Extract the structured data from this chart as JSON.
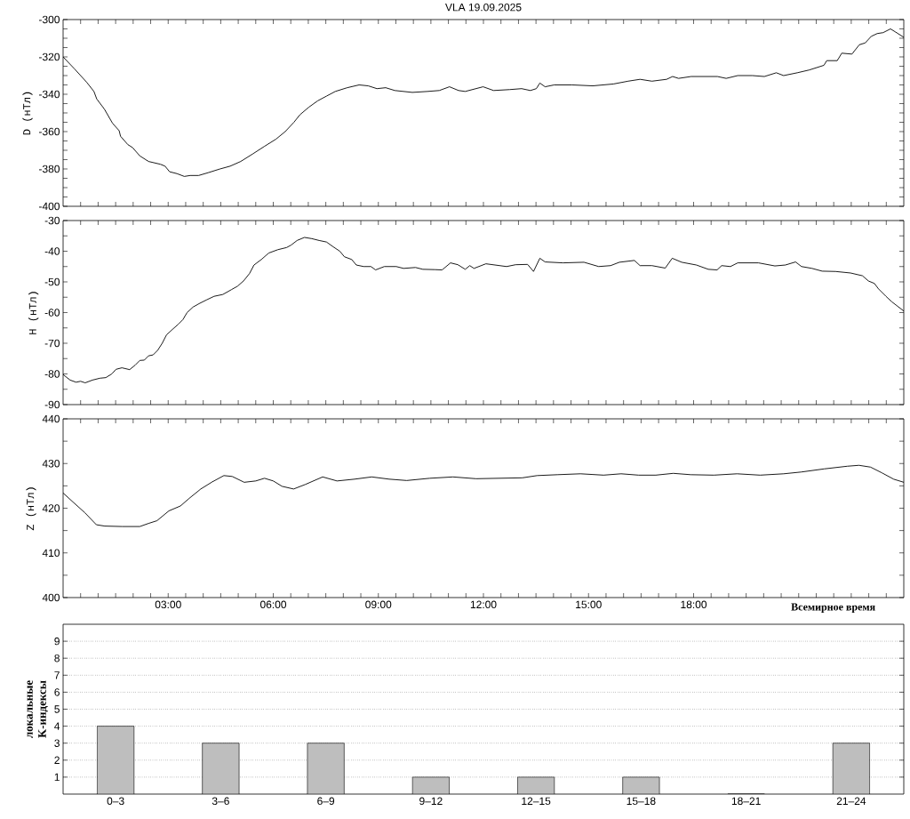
{
  "chart_data": [
    {
      "type": "line",
      "title": "VLA 19.09.2025",
      "ylabel": "D (нТл)",
      "color": "#000000",
      "tick_labels": "y",
      "x": [
        0,
        0.33,
        0.67,
        0.88,
        0.96,
        1.18,
        1.41,
        1.6,
        1.64,
        1.85,
        1.98,
        2.19,
        2.44,
        2.78,
        2.91,
        3.04,
        3.25,
        3.46,
        3.63,
        3.87,
        4.14,
        4.48,
        4.77,
        5.07,
        5.41,
        5.74,
        6.08,
        6.34,
        6.59,
        6.76,
        7.01,
        7.27,
        7.52,
        7.77,
        8.11,
        8.45,
        8.71,
        8.96,
        9.21,
        9.47,
        9.97,
        10.4,
        10.74,
        11.03,
        11.29,
        11.48,
        11.99,
        12.29,
        12.75,
        13.09,
        13.34,
        13.51,
        13.61,
        13.76,
        14.02,
        14.53,
        15.12,
        15.71,
        16.13,
        16.47,
        16.81,
        17.23,
        17.4,
        17.57,
        17.93,
        18.68,
        18.93,
        19.26,
        19.68,
        20.02,
        20.36,
        20.57,
        20.96,
        21.3,
        21.72,
        21.8,
        22.1,
        22.23,
        22.52,
        22.73,
        22.9,
        23.07,
        23.24,
        23.41,
        23.62,
        23.75,
        24
      ],
      "values": [
        -320,
        -326.5,
        -333.5,
        -338.5,
        -342.5,
        -348,
        -355.5,
        -359.5,
        -362.5,
        -367,
        -368.5,
        -373,
        -376,
        -377.5,
        -378.5,
        -381.5,
        -382.5,
        -384,
        -383.5,
        -383.5,
        -382,
        -380,
        -378.5,
        -376,
        -372,
        -368,
        -364,
        -360,
        -355,
        -351,
        -347,
        -343.5,
        -341,
        -338.5,
        -336.5,
        -335,
        -335.5,
        -337,
        -336.5,
        -338,
        -339,
        -338.5,
        -338,
        -336,
        -338,
        -338.5,
        -336,
        -338,
        -337.5,
        -337,
        -338,
        -337,
        -334,
        -336,
        -335,
        -335,
        -335.5,
        -334.5,
        -333,
        -332,
        -333,
        -332,
        -330.5,
        -331.5,
        -330.5,
        -330.5,
        -331.5,
        -330,
        -330,
        -330.5,
        -328.5,
        -330,
        -328.5,
        -327,
        -324.5,
        -322,
        -322,
        -318,
        -318.5,
        -313.5,
        -312.5,
        -309,
        -307.5,
        -307,
        -305,
        -306.5,
        -309.5
      ],
      "xlim": [
        0,
        24
      ],
      "xticks": [
        {
          "value": 0.5,
          "label": null
        },
        {
          "value": 1,
          "label": null
        },
        {
          "value": 1.5,
          "label": null
        },
        {
          "value": 2,
          "label": null
        },
        {
          "value": 2.5,
          "label": null
        },
        {
          "value": 3,
          "label": null
        },
        {
          "value": 3.5,
          "label": null
        },
        {
          "value": 4,
          "label": null
        },
        {
          "value": 4.5,
          "label": null
        },
        {
          "value": 5,
          "label": null
        },
        {
          "value": 5.5,
          "label": null
        },
        {
          "value": 6,
          "label": null
        },
        {
          "value": 6.5,
          "label": null
        },
        {
          "value": 7,
          "label": null
        },
        {
          "value": 7.5,
          "label": null
        },
        {
          "value": 8,
          "label": null
        },
        {
          "value": 8.5,
          "label": null
        },
        {
          "value": 9,
          "label": null
        },
        {
          "value": 9.5,
          "label": null
        },
        {
          "value": 10,
          "label": null
        },
        {
          "value": 10.5,
          "label": null
        },
        {
          "value": 11,
          "label": null
        },
        {
          "value": 11.5,
          "label": null
        },
        {
          "value": 12,
          "label": null
        },
        {
          "value": 12.5,
          "label": null
        },
        {
          "value": 13,
          "label": null
        },
        {
          "value": 13.5,
          "label": null
        },
        {
          "value": 14,
          "label": null
        },
        {
          "value": 14.5,
          "label": null
        },
        {
          "value": 15,
          "label": null
        },
        {
          "value": 15.5,
          "label": null
        },
        {
          "value": 16,
          "label": null
        },
        {
          "value": 16.5,
          "label": null
        },
        {
          "value": 17,
          "label": null
        },
        {
          "value": 17.5,
          "label": null
        },
        {
          "value": 18,
          "label": null
        },
        {
          "value": 18.5,
          "label": null
        },
        {
          "value": 19,
          "label": null
        },
        {
          "value": 19.5,
          "label": null
        },
        {
          "value": 20,
          "label": null
        },
        {
          "value": 20.5,
          "label": null
        },
        {
          "value": 21,
          "label": null
        },
        {
          "value": 21.5,
          "label": null
        },
        {
          "value": 22,
          "label": null
        },
        {
          "value": 22.5,
          "label": null
        },
        {
          "value": 23,
          "label": null
        },
        {
          "value": 23.5,
          "label": null
        }
      ],
      "ylim": [
        -400,
        -300
      ],
      "yticks": [
        -400,
        {
          "value": -395,
          "label": null
        },
        {
          "value": -390,
          "label": null
        },
        {
          "value": -385,
          "label": null
        },
        -380,
        {
          "value": -375,
          "label": null
        },
        {
          "value": -370,
          "label": null
        },
        {
          "value": -365,
          "label": null
        },
        -360,
        {
          "value": -355,
          "label": null
        },
        {
          "value": -350,
          "label": null
        },
        {
          "value": -345,
          "label": null
        },
        -340,
        {
          "value": -335,
          "label": null
        },
        {
          "value": -330,
          "label": null
        },
        {
          "value": -325,
          "label": null
        },
        -320,
        {
          "value": -315,
          "label": null
        },
        {
          "value": -310,
          "label": null
        },
        {
          "value": -305,
          "label": null
        },
        -300
      ]
    },
    {
      "type": "line",
      "ylabel": "H (нТл)",
      "color": "#000000",
      "tick_labels": "y",
      "x": [
        0,
        0.2,
        0.37,
        0.5,
        0.63,
        0.84,
        1.05,
        1.22,
        1.39,
        1.51,
        1.68,
        1.9,
        2.06,
        2.19,
        2.32,
        2.44,
        2.57,
        2.7,
        2.83,
        2.95,
        3.12,
        3.29,
        3.42,
        3.54,
        3.71,
        3.88,
        4.09,
        4.31,
        4.56,
        4.81,
        4.98,
        5.15,
        5.32,
        5.45,
        5.66,
        5.87,
        6.13,
        6.38,
        6.51,
        6.68,
        6.89,
        7.1,
        7.31,
        7.52,
        7.69,
        7.9,
        8.03,
        8.24,
        8.37,
        8.58,
        8.79,
        8.92,
        9.17,
        9.51,
        9.72,
        10.06,
        10.27,
        10.61,
        10.82,
        11.06,
        11.27,
        11.48,
        11.61,
        11.73,
        12.07,
        12.66,
        12.92,
        13.26,
        13.43,
        13.61,
        13.76,
        14.27,
        14.87,
        15.29,
        15.63,
        15.88,
        16.31,
        16.47,
        16.81,
        17.19,
        17.39,
        17.66,
        18.08,
        18.42,
        18.67,
        18.8,
        19.05,
        19.26,
        19.85,
        20.32,
        20.62,
        20.91,
        21.08,
        21.38,
        21.67,
        22.05,
        22.48,
        22.82,
        22.99,
        23.16,
        23.28,
        23.49,
        23.66,
        24
      ],
      "values": [
        -80.2,
        -82,
        -82.7,
        -82.4,
        -82.9,
        -82,
        -81.4,
        -81.2,
        -80,
        -78.5,
        -78,
        -78.6,
        -77.1,
        -75.6,
        -75.5,
        -74.1,
        -73.8,
        -72.3,
        -70,
        -67.3,
        -65.5,
        -63.8,
        -62.3,
        -60,
        -58.2,
        -57.1,
        -55.9,
        -54.7,
        -54.1,
        -52.5,
        -51.4,
        -49.7,
        -47.3,
        -44.5,
        -42.7,
        -40.6,
        -39.5,
        -38.8,
        -38,
        -36.5,
        -35.5,
        -35.9,
        -36.5,
        -37,
        -38.4,
        -40,
        -41.8,
        -42.7,
        -44.5,
        -45,
        -45,
        -46.1,
        -45,
        -45,
        -45.6,
        -45.3,
        -45.9,
        -46,
        -46.1,
        -43.8,
        -44.4,
        -45.9,
        -44.7,
        -45.6,
        -44.1,
        -45,
        -44.4,
        -44.3,
        -46.6,
        -42.3,
        -43.5,
        -43.8,
        -43.6,
        -45,
        -44.7,
        -43.6,
        -43,
        -44.7,
        -44.7,
        -45.5,
        -42.3,
        -43.6,
        -44.5,
        -45.9,
        -46.1,
        -44.7,
        -45,
        -43.8,
        -43.8,
        -44.8,
        -44.5,
        -43.5,
        -45,
        -45.6,
        -46.5,
        -46.6,
        -47.1,
        -48,
        -49.7,
        -50.5,
        -52.3,
        -54.7,
        -56.5,
        -59.5
      ],
      "xlim": [
        0,
        24
      ],
      "xticks": [
        {
          "value": 0.5,
          "label": null
        },
        {
          "value": 1,
          "label": null
        },
        {
          "value": 1.5,
          "label": null
        },
        {
          "value": 2,
          "label": null
        },
        {
          "value": 2.5,
          "label": null
        },
        {
          "value": 3,
          "label": null
        },
        {
          "value": 3.5,
          "label": null
        },
        {
          "value": 4,
          "label": null
        },
        {
          "value": 4.5,
          "label": null
        },
        {
          "value": 5,
          "label": null
        },
        {
          "value": 5.5,
          "label": null
        },
        {
          "value": 6,
          "label": null
        },
        {
          "value": 6.5,
          "label": null
        },
        {
          "value": 7,
          "label": null
        },
        {
          "value": 7.5,
          "label": null
        },
        {
          "value": 8,
          "label": null
        },
        {
          "value": 8.5,
          "label": null
        },
        {
          "value": 9,
          "label": null
        },
        {
          "value": 9.5,
          "label": null
        },
        {
          "value": 10,
          "label": null
        },
        {
          "value": 10.5,
          "label": null
        },
        {
          "value": 11,
          "label": null
        },
        {
          "value": 11.5,
          "label": null
        },
        {
          "value": 12,
          "label": null
        },
        {
          "value": 12.5,
          "label": null
        },
        {
          "value": 13,
          "label": null
        },
        {
          "value": 13.5,
          "label": null
        },
        {
          "value": 14,
          "label": null
        },
        {
          "value": 14.5,
          "label": null
        },
        {
          "value": 15,
          "label": null
        },
        {
          "value": 15.5,
          "label": null
        },
        {
          "value": 16,
          "label": null
        },
        {
          "value": 16.5,
          "label": null
        },
        {
          "value": 17,
          "label": null
        },
        {
          "value": 17.5,
          "label": null
        },
        {
          "value": 18,
          "label": null
        },
        {
          "value": 18.5,
          "label": null
        },
        {
          "value": 19,
          "label": null
        },
        {
          "value": 19.5,
          "label": null
        },
        {
          "value": 20,
          "label": null
        },
        {
          "value": 20.5,
          "label": null
        },
        {
          "value": 21,
          "label": null
        },
        {
          "value": 21.5,
          "label": null
        },
        {
          "value": 22,
          "label": null
        },
        {
          "value": 22.5,
          "label": null
        },
        {
          "value": 23,
          "label": null
        },
        {
          "value": 23.5,
          "label": null
        }
      ],
      "ylim": [
        -90,
        -30
      ],
      "yticks": [
        -90,
        {
          "value": -85,
          "label": null
        },
        -80,
        {
          "value": -75,
          "label": null
        },
        -70,
        {
          "value": -65,
          "label": null
        },
        -60,
        {
          "value": -55,
          "label": null
        },
        -50,
        {
          "value": -45,
          "label": null
        },
        -40,
        {
          "value": -35,
          "label": null
        },
        -30
      ]
    },
    {
      "type": "line",
      "ylabel": "Z (нТл)",
      "xlabel": "Всемирное время",
      "color": "#000000",
      "x": [
        0,
        0.28,
        0.62,
        0.95,
        1.19,
        1.69,
        2.19,
        2.44,
        2.68,
        3.02,
        3.35,
        3.6,
        3.93,
        4.26,
        4.59,
        4.83,
        5.17,
        5.5,
        5.75,
        6,
        6.25,
        6.58,
        6.91,
        7.41,
        7.82,
        8.32,
        8.81,
        9.31,
        9.81,
        10.47,
        11.13,
        11.79,
        12.45,
        13.11,
        13.53,
        14.11,
        14.77,
        15.43,
        15.93,
        16.43,
        16.92,
        17.42,
        17.92,
        18.58,
        19.24,
        19.9,
        20.57,
        21.07,
        21.73,
        22.39,
        22.72,
        23.05,
        23.38,
        23.71,
        24
      ],
      "values": [
        423.4,
        421.4,
        419,
        416.3,
        416,
        415.9,
        415.9,
        416.6,
        417.2,
        419.4,
        420.5,
        422.2,
        424.3,
        425.9,
        427.3,
        427.1,
        425.8,
        426.1,
        426.7,
        426.1,
        424.9,
        424.3,
        425.3,
        427,
        426.1,
        426.5,
        427,
        426.5,
        426.2,
        426.7,
        427,
        426.6,
        426.7,
        426.8,
        427.3,
        427.5,
        427.7,
        427.4,
        427.7,
        427.4,
        427.4,
        427.8,
        427.5,
        427.4,
        427.7,
        427.4,
        427.7,
        428.1,
        428.8,
        429.4,
        429.6,
        429.2,
        427.9,
        426.5,
        425.8
      ],
      "xlim": [
        0,
        24
      ],
      "xticks": [
        {
          "value": 0.5,
          "label": null
        },
        {
          "value": 1,
          "label": null
        },
        {
          "value": 1.5,
          "label": null
        },
        {
          "value": 2,
          "label": null
        },
        {
          "value": 2.5,
          "label": null
        },
        {
          "value": 3,
          "label": "03:00"
        },
        {
          "value": 3.5,
          "label": null
        },
        {
          "value": 4,
          "label": null
        },
        {
          "value": 4.5,
          "label": null
        },
        {
          "value": 5,
          "label": null
        },
        {
          "value": 5.5,
          "label": null
        },
        {
          "value": 6,
          "label": "06:00"
        },
        {
          "value": 6.5,
          "label": null
        },
        {
          "value": 7,
          "label": null
        },
        {
          "value": 7.5,
          "label": null
        },
        {
          "value": 8,
          "label": null
        },
        {
          "value": 8.5,
          "label": null
        },
        {
          "value": 9,
          "label": "09:00"
        },
        {
          "value": 9.5,
          "label": null
        },
        {
          "value": 10,
          "label": null
        },
        {
          "value": 10.5,
          "label": null
        },
        {
          "value": 11,
          "label": null
        },
        {
          "value": 11.5,
          "label": null
        },
        {
          "value": 12,
          "label": "12:00"
        },
        {
          "value": 12.5,
          "label": null
        },
        {
          "value": 13,
          "label": null
        },
        {
          "value": 13.5,
          "label": null
        },
        {
          "value": 14,
          "label": null
        },
        {
          "value": 14.5,
          "label": null
        },
        {
          "value": 15,
          "label": "15:00"
        },
        {
          "value": 15.5,
          "label": null
        },
        {
          "value": 16,
          "label": null
        },
        {
          "value": 16.5,
          "label": null
        },
        {
          "value": 17,
          "label": null
        },
        {
          "value": 17.5,
          "label": null
        },
        {
          "value": 18,
          "label": "18:00"
        },
        {
          "value": 18.5,
          "label": null
        },
        {
          "value": 19,
          "label": null
        },
        {
          "value": 19.5,
          "label": null
        },
        {
          "value": 20,
          "label": null
        },
        {
          "value": 20.5,
          "label": null
        },
        {
          "value": 21,
          "label": null
        },
        {
          "value": 21.5,
          "label": null
        },
        {
          "value": 22,
          "label": null
        },
        {
          "value": 22.5,
          "label": null
        },
        {
          "value": 23,
          "label": null
        },
        {
          "value": 23.5,
          "label": null
        }
      ],
      "ylim": [
        400,
        440
      ],
      "yticks": [
        400,
        {
          "value": 405,
          "label": null
        },
        410,
        {
          "value": 415,
          "label": null
        },
        420,
        {
          "value": 425,
          "label": null
        },
        430,
        {
          "value": 435,
          "label": null
        },
        440
      ]
    },
    {
      "type": "bar",
      "ylabel": "локальные K-индексы",
      "color": "#bebebe",
      "grid": "y",
      "categories": [
        "0–3",
        "3–6",
        "6–9",
        "9–12",
        "12–15",
        "15–18",
        "18–21",
        "21–24"
      ],
      "values": [
        4,
        3,
        3,
        1,
        1,
        1,
        0,
        3
      ],
      "ylim": [
        0,
        10
      ],
      "yticks": [
        1,
        2,
        3,
        4,
        5,
        6,
        7,
        8,
        9
      ]
    }
  ]
}
